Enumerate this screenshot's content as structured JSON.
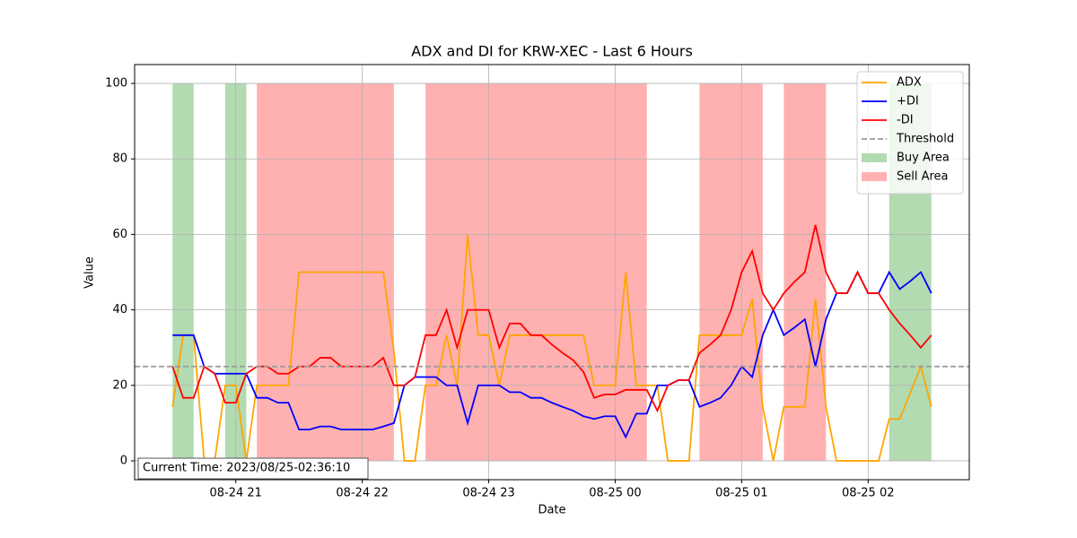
{
  "chart_data": {
    "type": "line",
    "title": "ADX and DI for KRW-XEC - Last 6 Hours",
    "x_label": "Date",
    "y_label": "Value",
    "x": [
      "08-24 20:30",
      "08-24 20:35",
      "08-24 20:40",
      "08-24 20:45",
      "08-24 20:50",
      "08-24 20:55",
      "08-24 21:00",
      "08-24 21:05",
      "08-24 21:10",
      "08-24 21:15",
      "08-24 21:20",
      "08-24 21:25",
      "08-24 21:30",
      "08-24 21:35",
      "08-24 21:40",
      "08-24 21:45",
      "08-24 21:50",
      "08-24 21:55",
      "08-24 22:00",
      "08-24 22:05",
      "08-24 22:10",
      "08-24 22:15",
      "08-24 22:20",
      "08-24 22:25",
      "08-24 22:30",
      "08-24 22:35",
      "08-24 22:40",
      "08-24 22:45",
      "08-24 22:50",
      "08-24 22:55",
      "08-24 23:00",
      "08-24 23:05",
      "08-24 23:10",
      "08-24 23:15",
      "08-24 23:20",
      "08-24 23:25",
      "08-24 23:30",
      "08-24 23:35",
      "08-24 23:40",
      "08-24 23:45",
      "08-24 23:50",
      "08-24 23:55",
      "08-25 00:00",
      "08-25 00:05",
      "08-25 00:10",
      "08-25 00:15",
      "08-25 00:20",
      "08-25 00:25",
      "08-25 00:30",
      "08-25 00:35",
      "08-25 00:40",
      "08-25 00:45",
      "08-25 00:50",
      "08-25 00:55",
      "08-25 01:00",
      "08-25 01:05",
      "08-25 01:10",
      "08-25 01:15",
      "08-25 01:20",
      "08-25 01:25",
      "08-25 01:30",
      "08-25 01:35",
      "08-25 01:40",
      "08-25 01:45",
      "08-25 01:50",
      "08-25 01:55",
      "08-25 02:00",
      "08-25 02:05",
      "08-25 02:10",
      "08-25 02:15",
      "08-25 02:20",
      "08-25 02:25",
      "08-25 02:30"
    ],
    "series": [
      {
        "name": "ADX",
        "color": "#ffa500",
        "values": [
          14.3,
          33.3,
          33.3,
          0,
          0,
          20,
          20,
          0,
          20,
          20,
          20,
          20,
          50,
          50,
          50,
          50,
          50,
          50,
          50,
          50,
          50,
          29,
          0,
          0,
          20,
          20,
          33.3,
          20,
          60,
          33.3,
          33.3,
          20,
          33.3,
          33.3,
          33.3,
          33.3,
          33.3,
          33.3,
          33.3,
          33.3,
          20,
          20,
          20,
          50,
          20,
          20,
          20,
          0,
          0,
          0,
          33.3,
          33.3,
          33.3,
          33.3,
          33.3,
          42.9,
          14.3,
          0,
          14.3,
          14.3,
          14.3,
          42.9,
          14.3,
          0,
          0,
          0,
          0,
          0,
          11.1,
          11.1,
          18,
          25,
          14.3
        ]
      },
      {
        "name": "+DI",
        "color": "#0000ff",
        "values": [
          33.3,
          33.3,
          33.3,
          25,
          23.1,
          23.1,
          23.1,
          23.1,
          16.7,
          16.7,
          15.4,
          15.4,
          8.3,
          8.3,
          9.1,
          9.1,
          8.3,
          8.3,
          8.3,
          8.3,
          9.1,
          10,
          20,
          22.2,
          22.2,
          22.2,
          20,
          20,
          10,
          20,
          20,
          20,
          18.2,
          18.2,
          16.7,
          16.7,
          15.4,
          14.3,
          13.3,
          11.8,
          11.1,
          11.8,
          11.8,
          6.3,
          12.5,
          12.5,
          20,
          20,
          21.4,
          21.4,
          14.3,
          15.4,
          16.7,
          20,
          25,
          22.2,
          33.3,
          40,
          33.3,
          35.3,
          37.5,
          25,
          37.5,
          44.4,
          44.4,
          50,
          44.4,
          44.4,
          50,
          45.5,
          47.6,
          50,
          44.4
        ]
      },
      {
        "name": "-DI",
        "color": "#ff0000",
        "values": [
          25,
          16.7,
          16.7,
          25,
          23.1,
          15.4,
          15.4,
          23.1,
          25,
          25,
          23.1,
          23.1,
          25,
          25,
          27.3,
          27.3,
          25,
          25,
          25,
          25,
          27.3,
          20,
          20,
          22.2,
          33.3,
          33.3,
          40,
          30,
          40,
          40,
          40,
          30,
          36.4,
          36.4,
          33.3,
          33.3,
          30.8,
          28.6,
          26.7,
          23.5,
          16.7,
          17.6,
          17.6,
          18.8,
          18.8,
          18.8,
          13.3,
          20,
          21.4,
          21.4,
          28.6,
          30.8,
          33.3,
          40,
          50,
          55.6,
          44.4,
          40,
          44.4,
          47.4,
          50,
          62.5,
          50,
          44.4,
          44.4,
          50,
          44.4,
          44.4,
          40,
          36.4,
          33.3,
          30,
          33.3
        ]
      }
    ],
    "threshold": {
      "name": "Threshold",
      "value": 25,
      "color": "#999999"
    },
    "areas": [
      {
        "name": "Buy Area",
        "color": "#b2dbb2",
        "ymin": 0,
        "ymax": 100,
        "spans": [
          [
            "08-24 20:30",
            "08-24 20:40"
          ],
          [
            "08-24 20:55",
            "08-24 21:05"
          ],
          [
            "08-25 02:10",
            "08-25 02:30"
          ]
        ]
      },
      {
        "name": "Sell Area",
        "color": "#ffb1b1",
        "ymin": 0,
        "ymax": 100,
        "spans": [
          [
            "08-24 21:10",
            "08-24 22:15"
          ],
          [
            "08-24 22:30",
            "08-25 00:15"
          ],
          [
            "08-25 00:40",
            "08-25 01:10"
          ],
          [
            "08-25 01:20",
            "08-25 01:40"
          ]
        ]
      }
    ],
    "xlim": [
      "08-24 20:12",
      "08-25 02:48"
    ],
    "xticks": [
      {
        "value": "08-24 21:00",
        "label": "08-24 21"
      },
      {
        "value": "08-24 22:00",
        "label": "08-24 22"
      },
      {
        "value": "08-24 23:00",
        "label": "08-24 23"
      },
      {
        "value": "08-25 00:00",
        "label": "08-25 00"
      },
      {
        "value": "08-25 01:00",
        "label": "08-25 01"
      },
      {
        "value": "08-25 02:00",
        "label": "08-25 02"
      }
    ],
    "ylim": [
      -5,
      105
    ],
    "yticks": [
      0,
      20,
      40,
      60,
      80,
      100
    ],
    "grid": true,
    "legend": "upper right",
    "annotation": "Current Time: 2023/08/25-02:36:10"
  }
}
